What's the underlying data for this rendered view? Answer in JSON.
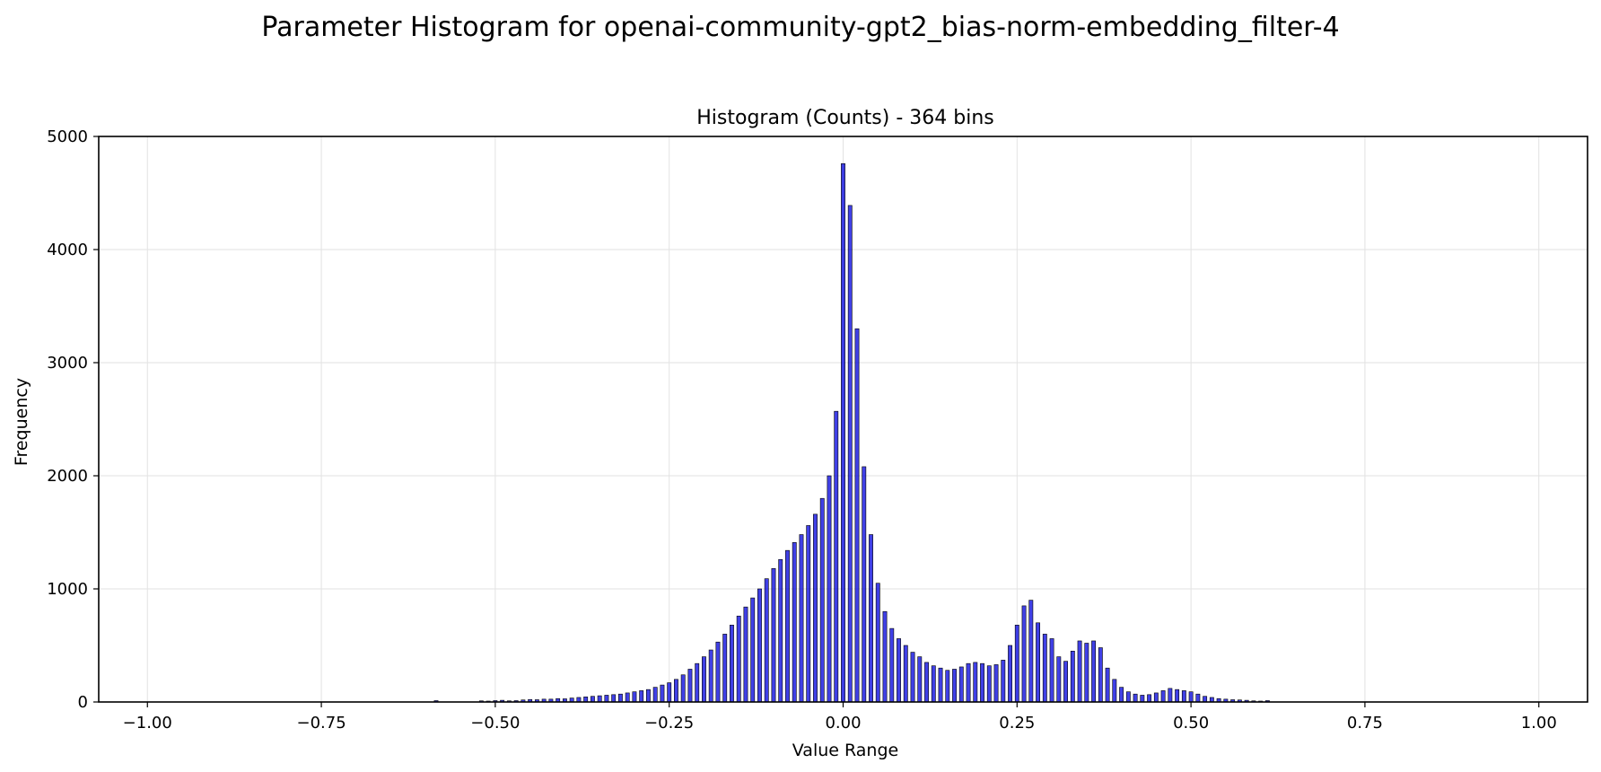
{
  "figure": {
    "suptitle": "Parameter Histogram for openai-community-gpt2_bias-norm-embedding_filter-4"
  },
  "chart_data": {
    "type": "bar",
    "title": "Histogram (Counts) - 364 bins",
    "xlabel": "Value Range",
    "ylabel": "Frequency",
    "xlim": [
      -1.07,
      1.07
    ],
    "ylim": [
      0,
      5000
    ],
    "xticks": [
      -1.0,
      -0.75,
      -0.5,
      -0.25,
      0.0,
      0.25,
      0.5,
      0.75,
      1.0
    ],
    "xtick_labels": [
      "−1.00",
      "−0.75",
      "−0.50",
      "−0.25",
      "0.00",
      "0.25",
      "0.50",
      "0.75",
      "1.00"
    ],
    "yticks": [
      0,
      1000,
      2000,
      3000,
      4000,
      5000
    ],
    "ytick_labels": [
      "0",
      "1000",
      "2000",
      "3000",
      "4000",
      "5000"
    ],
    "grid": true,
    "bin_range": [
      -1.0,
      1.0
    ],
    "bin_count": 364,
    "bar_color": "#0000dd",
    "bar_edge_color": "#000000",
    "bins": [
      {
        "x": -0.585,
        "y": 12
      },
      {
        "x": -0.52,
        "y": 10
      },
      {
        "x": -0.51,
        "y": 8
      },
      {
        "x": -0.5,
        "y": 12
      },
      {
        "x": -0.49,
        "y": 15
      },
      {
        "x": -0.48,
        "y": 10
      },
      {
        "x": -0.47,
        "y": 12
      },
      {
        "x": -0.46,
        "y": 18
      },
      {
        "x": -0.45,
        "y": 22
      },
      {
        "x": -0.44,
        "y": 20
      },
      {
        "x": -0.43,
        "y": 25
      },
      {
        "x": -0.42,
        "y": 25
      },
      {
        "x": -0.41,
        "y": 30
      },
      {
        "x": -0.4,
        "y": 28
      },
      {
        "x": -0.39,
        "y": 35
      },
      {
        "x": -0.38,
        "y": 40
      },
      {
        "x": -0.37,
        "y": 45
      },
      {
        "x": -0.36,
        "y": 50
      },
      {
        "x": -0.35,
        "y": 55
      },
      {
        "x": -0.34,
        "y": 60
      },
      {
        "x": -0.33,
        "y": 65
      },
      {
        "x": -0.32,
        "y": 70
      },
      {
        "x": -0.31,
        "y": 80
      },
      {
        "x": -0.3,
        "y": 90
      },
      {
        "x": -0.29,
        "y": 100
      },
      {
        "x": -0.28,
        "y": 110
      },
      {
        "x": -0.27,
        "y": 130
      },
      {
        "x": -0.26,
        "y": 150
      },
      {
        "x": -0.25,
        "y": 170
      },
      {
        "x": -0.24,
        "y": 200
      },
      {
        "x": -0.23,
        "y": 240
      },
      {
        "x": -0.22,
        "y": 290
      },
      {
        "x": -0.21,
        "y": 340
      },
      {
        "x": -0.2,
        "y": 400
      },
      {
        "x": -0.19,
        "y": 460
      },
      {
        "x": -0.18,
        "y": 530
      },
      {
        "x": -0.17,
        "y": 600
      },
      {
        "x": -0.16,
        "y": 680
      },
      {
        "x": -0.15,
        "y": 760
      },
      {
        "x": -0.14,
        "y": 840
      },
      {
        "x": -0.13,
        "y": 920
      },
      {
        "x": -0.12,
        "y": 1000
      },
      {
        "x": -0.11,
        "y": 1090
      },
      {
        "x": -0.1,
        "y": 1180
      },
      {
        "x": -0.09,
        "y": 1260
      },
      {
        "x": -0.08,
        "y": 1340
      },
      {
        "x": -0.07,
        "y": 1410
      },
      {
        "x": -0.06,
        "y": 1480
      },
      {
        "x": -0.05,
        "y": 1560
      },
      {
        "x": -0.04,
        "y": 1660
      },
      {
        "x": -0.03,
        "y": 1800
      },
      {
        "x": -0.02,
        "y": 2000
      },
      {
        "x": -0.01,
        "y": 2570
      },
      {
        "x": 0.0,
        "y": 4760
      },
      {
        "x": 0.01,
        "y": 4390
      },
      {
        "x": 0.02,
        "y": 3300
      },
      {
        "x": 0.03,
        "y": 2080
      },
      {
        "x": 0.04,
        "y": 1480
      },
      {
        "x": 0.05,
        "y": 1050
      },
      {
        "x": 0.06,
        "y": 800
      },
      {
        "x": 0.07,
        "y": 650
      },
      {
        "x": 0.08,
        "y": 560
      },
      {
        "x": 0.09,
        "y": 500
      },
      {
        "x": 0.1,
        "y": 440
      },
      {
        "x": 0.11,
        "y": 400
      },
      {
        "x": 0.12,
        "y": 350
      },
      {
        "x": 0.13,
        "y": 320
      },
      {
        "x": 0.14,
        "y": 300
      },
      {
        "x": 0.15,
        "y": 280
      },
      {
        "x": 0.16,
        "y": 290
      },
      {
        "x": 0.17,
        "y": 310
      },
      {
        "x": 0.18,
        "y": 340
      },
      {
        "x": 0.19,
        "y": 350
      },
      {
        "x": 0.2,
        "y": 340
      },
      {
        "x": 0.21,
        "y": 320
      },
      {
        "x": 0.22,
        "y": 330
      },
      {
        "x": 0.23,
        "y": 370
      },
      {
        "x": 0.24,
        "y": 500
      },
      {
        "x": 0.25,
        "y": 680
      },
      {
        "x": 0.26,
        "y": 850
      },
      {
        "x": 0.27,
        "y": 900
      },
      {
        "x": 0.28,
        "y": 700
      },
      {
        "x": 0.29,
        "y": 600
      },
      {
        "x": 0.3,
        "y": 560
      },
      {
        "x": 0.31,
        "y": 400
      },
      {
        "x": 0.32,
        "y": 360
      },
      {
        "x": 0.33,
        "y": 450
      },
      {
        "x": 0.34,
        "y": 540
      },
      {
        "x": 0.35,
        "y": 520
      },
      {
        "x": 0.36,
        "y": 540
      },
      {
        "x": 0.37,
        "y": 480
      },
      {
        "x": 0.38,
        "y": 300
      },
      {
        "x": 0.39,
        "y": 200
      },
      {
        "x": 0.4,
        "y": 130
      },
      {
        "x": 0.41,
        "y": 90
      },
      {
        "x": 0.42,
        "y": 70
      },
      {
        "x": 0.43,
        "y": 60
      },
      {
        "x": 0.44,
        "y": 65
      },
      {
        "x": 0.45,
        "y": 80
      },
      {
        "x": 0.46,
        "y": 100
      },
      {
        "x": 0.47,
        "y": 120
      },
      {
        "x": 0.48,
        "y": 110
      },
      {
        "x": 0.49,
        "y": 100
      },
      {
        "x": 0.5,
        "y": 90
      },
      {
        "x": 0.51,
        "y": 70
      },
      {
        "x": 0.52,
        "y": 50
      },
      {
        "x": 0.53,
        "y": 40
      },
      {
        "x": 0.54,
        "y": 30
      },
      {
        "x": 0.55,
        "y": 25
      },
      {
        "x": 0.56,
        "y": 20
      },
      {
        "x": 0.57,
        "y": 18
      },
      {
        "x": 0.58,
        "y": 15
      },
      {
        "x": 0.59,
        "y": 10
      },
      {
        "x": 0.6,
        "y": 8
      },
      {
        "x": 0.61,
        "y": 12
      }
    ]
  }
}
